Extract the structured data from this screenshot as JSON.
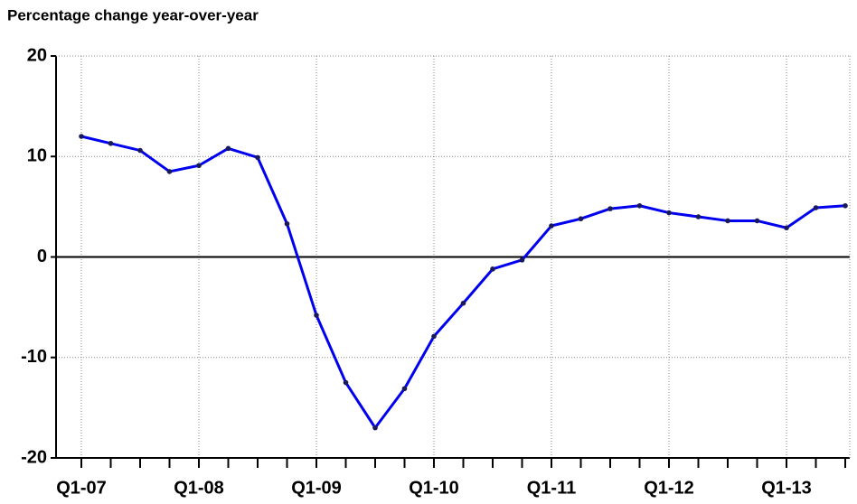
{
  "chart_data": {
    "type": "line",
    "title": "Percentage change year-over-year",
    "categories": [
      "Q1-07",
      null,
      null,
      null,
      "Q1-08",
      null,
      null,
      null,
      "Q1-09",
      null,
      null,
      null,
      "Q1-10",
      null,
      null,
      null,
      "Q1-11",
      null,
      null,
      null,
      "Q1-12",
      null,
      null,
      null,
      "Q1-13",
      null,
      null
    ],
    "series": [
      {
        "name": "Percentage change",
        "color": "#0000ee",
        "values": [
          12,
          11.3,
          10.6,
          8.5,
          9.1,
          10.8,
          9.9,
          3.3,
          -5.8,
          -12.5,
          -17,
          -13.1,
          -7.9,
          -4.6,
          -1.2,
          -0.3,
          3.1,
          3.8,
          4.8,
          5.1,
          4.4,
          4.0,
          3.6,
          3.6,
          2.9,
          4.9,
          5.1
        ]
      }
    ],
    "ylim": [
      -20,
      20
    ],
    "yticks": [
      -20,
      -10,
      0,
      10,
      20
    ],
    "grid": true
  }
}
